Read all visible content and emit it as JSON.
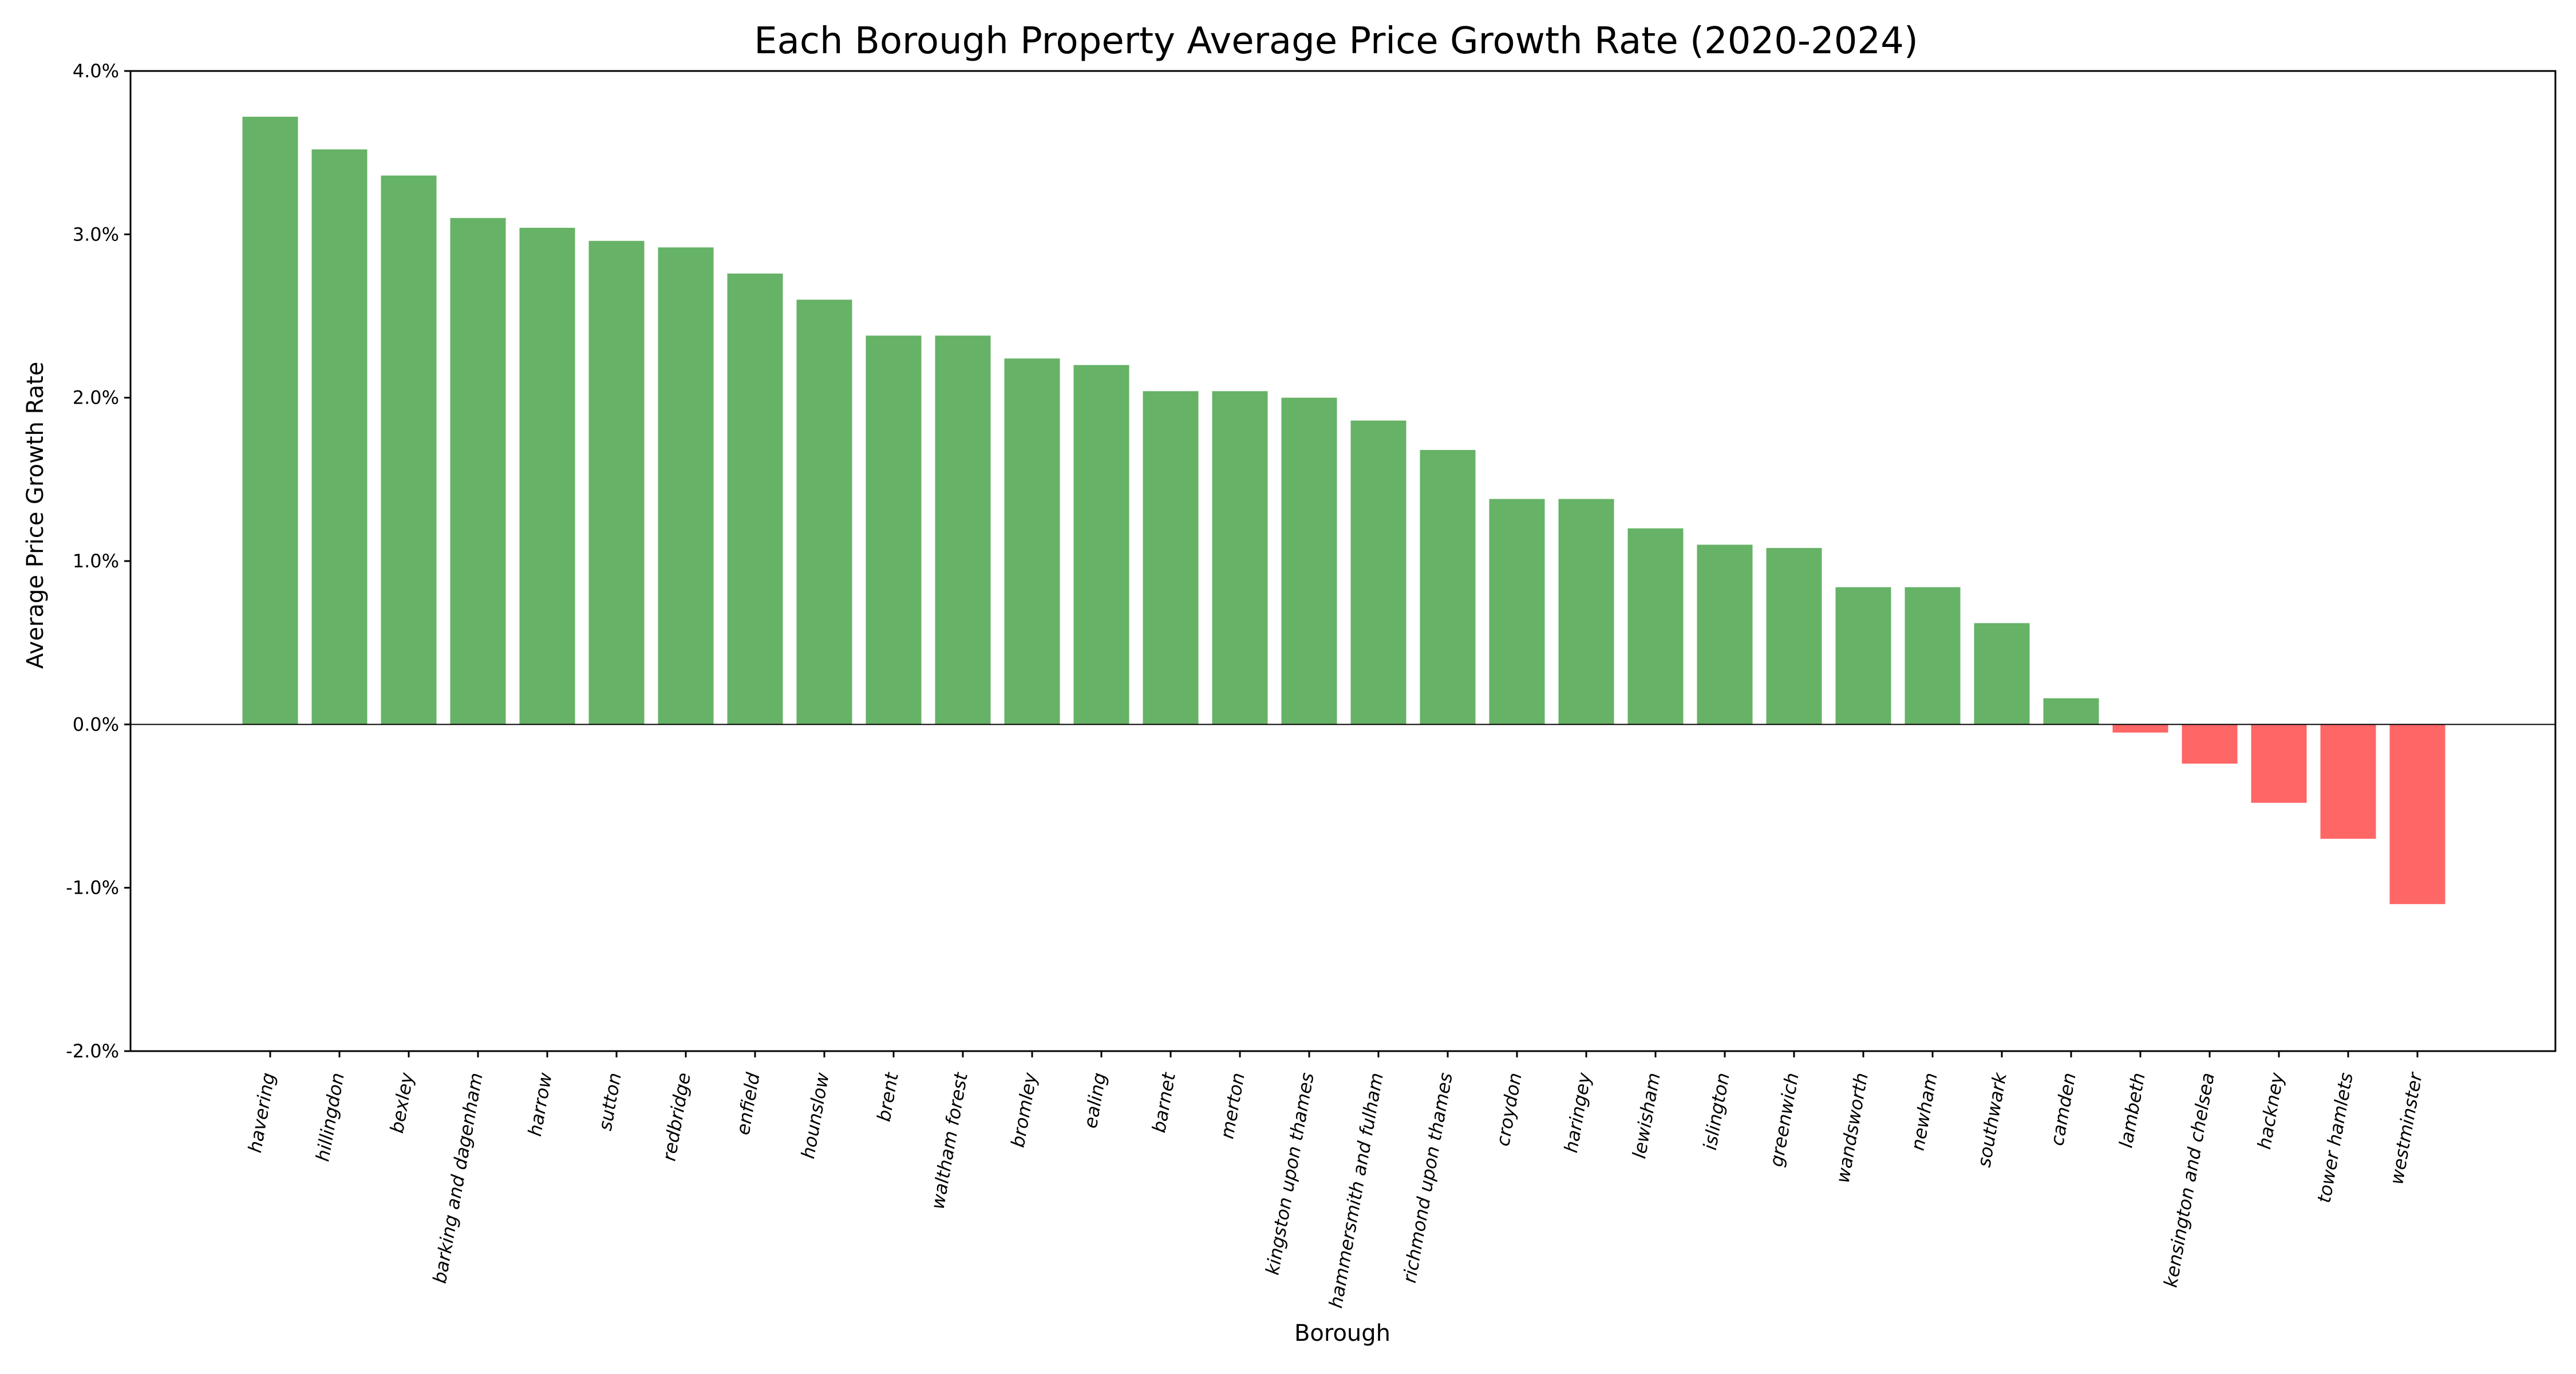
{
  "chart_data": {
    "type": "bar",
    "title": "Each Borough Property Average Price Growth Rate (2020-2024)",
    "xlabel": "Borough",
    "ylabel": "Average Price Growth Rate",
    "ylim": [
      -2.0,
      4.0
    ],
    "yticks": [
      -2.0,
      -1.0,
      0.0,
      1.0,
      2.0,
      3.0,
      4.0
    ],
    "ytick_labels": [
      "-2.0%",
      "-1.0%",
      "0.0%",
      "1.0%",
      "2.0%",
      "3.0%",
      "4.0%"
    ],
    "grid": false,
    "legend": null,
    "categories": [
      "havering",
      "hillingdon",
      "bexley",
      "barking and dagenham",
      "harrow",
      "sutton",
      "redbridge",
      "enfield",
      "hounslow",
      "brent",
      "waltham forest",
      "bromley",
      "ealing",
      "barnet",
      "merton",
      "kingston upon thames",
      "hammersmith and fulham",
      "richmond upon thames",
      "croydon",
      "haringey",
      "lewisham",
      "islington",
      "greenwich",
      "wandsworth",
      "newham",
      "southwark",
      "camden",
      "lambeth",
      "kensington and chelsea",
      "hackney",
      "tower hamlets",
      "westminster"
    ],
    "values": [
      3.72,
      3.52,
      3.36,
      3.1,
      3.04,
      2.96,
      2.92,
      2.76,
      2.6,
      2.38,
      2.38,
      2.24,
      2.2,
      2.04,
      2.04,
      2.0,
      1.86,
      1.68,
      1.38,
      1.38,
      1.2,
      1.1,
      1.08,
      0.84,
      0.84,
      0.62,
      0.16,
      -0.05,
      -0.24,
      -0.48,
      -0.7,
      -1.1
    ],
    "unit": "%",
    "colors": {
      "positive": "#66b266",
      "negative": "#ff6666",
      "axis": "#000000",
      "zero_line": "#000000"
    }
  }
}
